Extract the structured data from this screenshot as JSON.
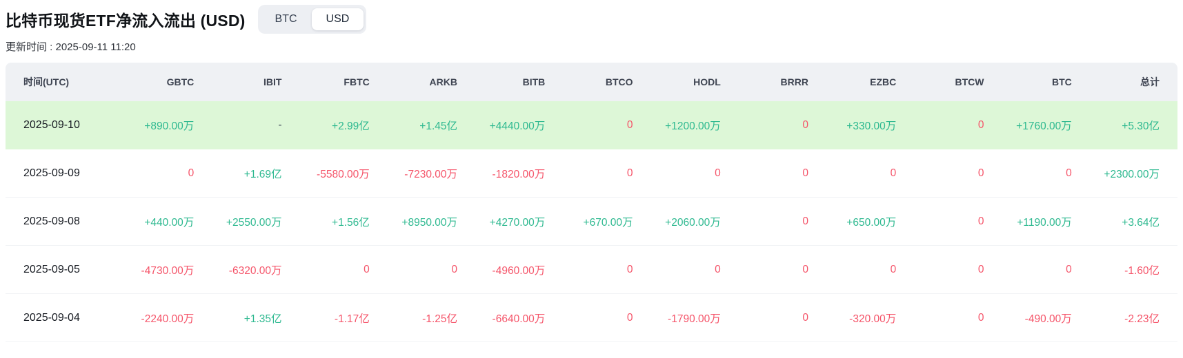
{
  "page": {
    "title": "比特币现货ETF净流入流出 (USD)",
    "updated_label": "更新时间 : 2025-09-11 11:20"
  },
  "toggle": {
    "options": [
      {
        "label": "BTC",
        "active": false
      },
      {
        "label": "USD",
        "active": true
      }
    ]
  },
  "colors": {
    "positive": "#2eb990",
    "negative": "#f5556a",
    "neutral": "#4b5563",
    "highlight_row_bg": "#ddf7d7",
    "header_bg": "#eff1f4"
  },
  "table": {
    "columns": [
      "时间(UTC)",
      "GBTC",
      "IBIT",
      "FBTC",
      "ARKB",
      "BITB",
      "BTCO",
      "HODL",
      "BRRR",
      "EZBC",
      "BTCW",
      "BTC",
      "总计"
    ],
    "rows": [
      {
        "date": "2025-09-10",
        "highlighted": true,
        "cells": [
          {
            "text": "+890.00万",
            "tone": "pos"
          },
          {
            "text": "-",
            "tone": "neutral"
          },
          {
            "text": "+2.99亿",
            "tone": "pos"
          },
          {
            "text": "+1.45亿",
            "tone": "pos"
          },
          {
            "text": "+4440.00万",
            "tone": "pos"
          },
          {
            "text": "0",
            "tone": "neg"
          },
          {
            "text": "+1200.00万",
            "tone": "pos"
          },
          {
            "text": "0",
            "tone": "neg"
          },
          {
            "text": "+330.00万",
            "tone": "pos"
          },
          {
            "text": "0",
            "tone": "neg"
          },
          {
            "text": "+1760.00万",
            "tone": "pos"
          },
          {
            "text": "+5.30亿",
            "tone": "pos"
          }
        ]
      },
      {
        "date": "2025-09-09",
        "highlighted": false,
        "cells": [
          {
            "text": "0",
            "tone": "neg"
          },
          {
            "text": "+1.69亿",
            "tone": "pos"
          },
          {
            "text": "-5580.00万",
            "tone": "neg"
          },
          {
            "text": "-7230.00万",
            "tone": "neg"
          },
          {
            "text": "-1820.00万",
            "tone": "neg"
          },
          {
            "text": "0",
            "tone": "neg"
          },
          {
            "text": "0",
            "tone": "neg"
          },
          {
            "text": "0",
            "tone": "neg"
          },
          {
            "text": "0",
            "tone": "neg"
          },
          {
            "text": "0",
            "tone": "neg"
          },
          {
            "text": "0",
            "tone": "neg"
          },
          {
            "text": "+2300.00万",
            "tone": "pos"
          }
        ]
      },
      {
        "date": "2025-09-08",
        "highlighted": false,
        "cells": [
          {
            "text": "+440.00万",
            "tone": "pos"
          },
          {
            "text": "+2550.00万",
            "tone": "pos"
          },
          {
            "text": "+1.56亿",
            "tone": "pos"
          },
          {
            "text": "+8950.00万",
            "tone": "pos"
          },
          {
            "text": "+4270.00万",
            "tone": "pos"
          },
          {
            "text": "+670.00万",
            "tone": "pos"
          },
          {
            "text": "+2060.00万",
            "tone": "pos"
          },
          {
            "text": "0",
            "tone": "neg"
          },
          {
            "text": "+650.00万",
            "tone": "pos"
          },
          {
            "text": "0",
            "tone": "neg"
          },
          {
            "text": "+1190.00万",
            "tone": "pos"
          },
          {
            "text": "+3.64亿",
            "tone": "pos"
          }
        ]
      },
      {
        "date": "2025-09-05",
        "highlighted": false,
        "cells": [
          {
            "text": "-4730.00万",
            "tone": "neg"
          },
          {
            "text": "-6320.00万",
            "tone": "neg"
          },
          {
            "text": "0",
            "tone": "neg"
          },
          {
            "text": "0",
            "tone": "neg"
          },
          {
            "text": "-4960.00万",
            "tone": "neg"
          },
          {
            "text": "0",
            "tone": "neg"
          },
          {
            "text": "0",
            "tone": "neg"
          },
          {
            "text": "0",
            "tone": "neg"
          },
          {
            "text": "0",
            "tone": "neg"
          },
          {
            "text": "0",
            "tone": "neg"
          },
          {
            "text": "0",
            "tone": "neg"
          },
          {
            "text": "-1.60亿",
            "tone": "neg"
          }
        ]
      },
      {
        "date": "2025-09-04",
        "highlighted": false,
        "cells": [
          {
            "text": "-2240.00万",
            "tone": "neg"
          },
          {
            "text": "+1.35亿",
            "tone": "pos"
          },
          {
            "text": "-1.17亿",
            "tone": "neg"
          },
          {
            "text": "-1.25亿",
            "tone": "neg"
          },
          {
            "text": "-6640.00万",
            "tone": "neg"
          },
          {
            "text": "0",
            "tone": "neg"
          },
          {
            "text": "-1790.00万",
            "tone": "neg"
          },
          {
            "text": "0",
            "tone": "neg"
          },
          {
            "text": "-320.00万",
            "tone": "neg"
          },
          {
            "text": "0",
            "tone": "neg"
          },
          {
            "text": "-490.00万",
            "tone": "neg"
          },
          {
            "text": "-2.23亿",
            "tone": "neg"
          }
        ]
      }
    ]
  }
}
